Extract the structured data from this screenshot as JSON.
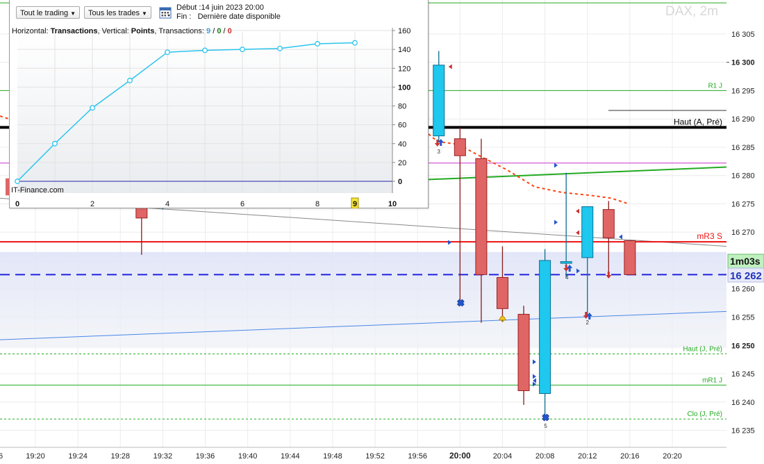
{
  "toolbar": {
    "trading_dropdown": "Tout le trading",
    "trades_dropdown": "Tous les trades",
    "start_label": "Début :",
    "start_value": "14 juin 2023 20:00",
    "end_label": "Fin :",
    "end_value": "Dernière date disponible"
  },
  "inner_header": {
    "h_label": "Horizontal: ",
    "h_value": "Transactions",
    "v_label": ", Vertical: ",
    "v_value": "Points",
    "t_label": ", Transactions: ",
    "t_total": "9",
    "sep1": " / ",
    "t_win": "0",
    "sep2": " / ",
    "t_loss": "0"
  },
  "footer_label": "IT-Finance.com",
  "colors": {
    "bull": "#1ec8ee",
    "bear": "#e06565",
    "inner_line": "#29c4ee",
    "support": "#2222dd",
    "resistance": "#ee1111",
    "pivot_green": "#22aa22",
    "ma": "#ff4411"
  },
  "chart_data": [
    {
      "type": "candlestick",
      "title": "DAX, 2m",
      "x_ticks": [
        "19:20",
        "19:24",
        "19:28",
        "19:32",
        "19:36",
        "19:40",
        "19:44",
        "19:48",
        "19:52",
        "19:56",
        "20:00",
        "20:04",
        "20:08",
        "20:12",
        "20:16",
        "20:20"
      ],
      "y_ticks": [
        "16 235",
        "16 240",
        "16 245",
        "16 250",
        "16 255",
        "16 260",
        "16 265",
        "16 270",
        "16 275",
        "16 280",
        "16 285",
        "16 290",
        "16 295",
        "16 300",
        "16 305"
      ],
      "ylim": [
        16232,
        16311
      ],
      "candles": [
        {
          "time": "19:58",
          "open": 16287,
          "high": 16302,
          "low": 16286,
          "close": 16299.5
        },
        {
          "time": "20:00",
          "open": 16286.5,
          "high": 16288.5,
          "low": 16257,
          "close": 16283.5
        },
        {
          "time": "20:02",
          "open": 16283,
          "high": 16286.5,
          "low": 16254,
          "close": 16262.5
        },
        {
          "time": "20:04",
          "open": 16262,
          "high": 16267.5,
          "low": 16255,
          "close": 16256.5
        },
        {
          "time": "20:06",
          "open": 16255.5,
          "high": 16257,
          "low": 16239.5,
          "close": 16242
        },
        {
          "time": "20:08",
          "open": 16241.5,
          "high": 16267,
          "low": 16237.5,
          "close": 16265
        },
        {
          "time": "20:10",
          "open": 16264.5,
          "high": 16280.5,
          "low": 16262,
          "close": 16264.8
        },
        {
          "time": "20:12",
          "open": 16265.5,
          "high": 16274.5,
          "low": 16255,
          "close": 16274.5
        },
        {
          "time": "20:14",
          "open": 16274,
          "high": 16275.5,
          "low": 16262.5,
          "close": 16269
        },
        {
          "time": "20:16",
          "open": 16268.5,
          "high": 16268.5,
          "low": 16262.5,
          "close": 16262.5
        }
      ],
      "horizontal_levels": [
        {
          "name": "R1 J",
          "value": 16295
        },
        {
          "name": "Haut (A, Pré)",
          "value": 16288.5
        },
        {
          "name": "mR3 S",
          "value": 16268.3
        },
        {
          "name": "Haut (J, Pré)",
          "value": 16248.5
        },
        {
          "name": "mR1 J",
          "value": 16243
        },
        {
          "name": "Clo (J, Pré)",
          "value": 16237
        }
      ],
      "price_label": "16 262",
      "timer_label": "1m03s",
      "price_level": 16262.5,
      "bold_x_tick": "20:00"
    },
    {
      "type": "line",
      "xlabel": "Transactions",
      "ylabel": "Points",
      "x": [
        0,
        1,
        2,
        3,
        4,
        5,
        6,
        7,
        8,
        9
      ],
      "values": [
        0,
        40,
        78,
        107,
        137,
        139,
        140,
        141,
        146,
        147
      ],
      "xlim": [
        0,
        10
      ],
      "ylim": [
        0,
        160
      ],
      "x_ticks": [
        "0",
        "2",
        "4",
        "6",
        "8",
        "10"
      ],
      "x_marker": "9",
      "y_ticks": [
        "0",
        "20",
        "40",
        "60",
        "80",
        "100",
        "120",
        "140",
        "160"
      ]
    }
  ]
}
